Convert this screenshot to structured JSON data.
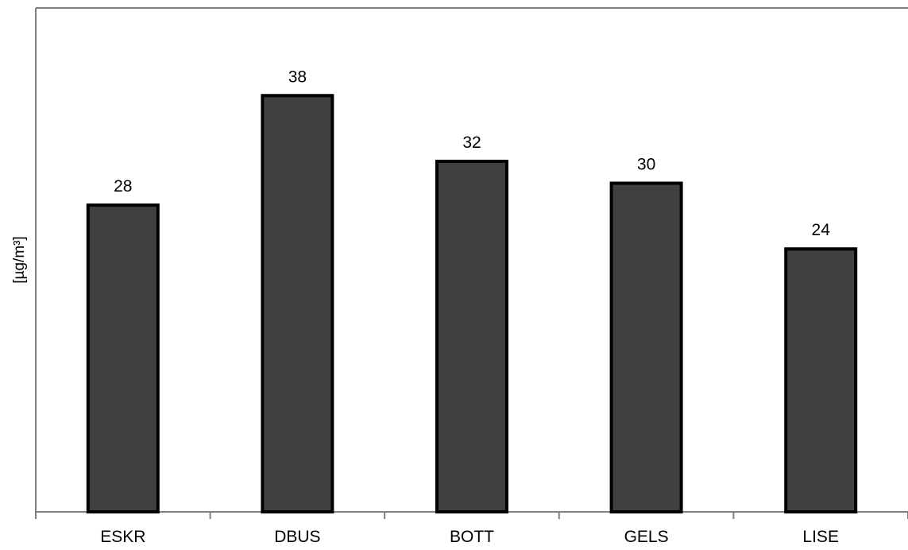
{
  "chart_data": {
    "type": "bar",
    "title": "",
    "xlabel": "",
    "ylabel": "[µg/m³]",
    "categories": [
      "ESKR",
      "DBUS",
      "BOTT",
      "GELS",
      "LISE"
    ],
    "values": [
      28,
      38,
      32,
      30,
      24
    ],
    "ylim": [
      0,
      46
    ],
    "grid": false,
    "legend": "none",
    "colors": {
      "bar_fill": "#404040",
      "bar_stroke": "#000000",
      "axis": "#808080"
    }
  }
}
